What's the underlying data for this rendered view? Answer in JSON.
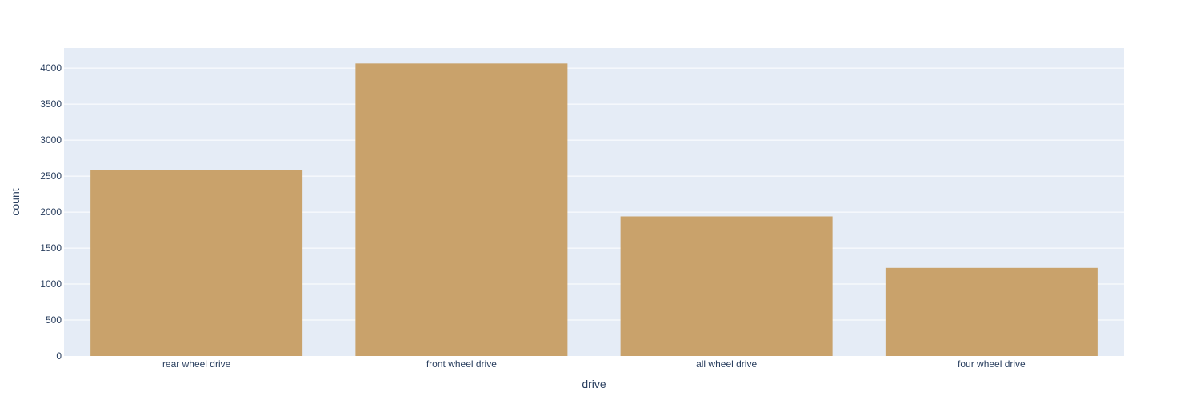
{
  "colors": {
    "plot_background": "#e5ecf6",
    "grid": "#ffffff",
    "bar": "#c9a26b",
    "text": "#2a3f5f"
  },
  "chart_data": {
    "type": "bar",
    "categories": [
      "rear wheel drive",
      "front wheel drive",
      "all wheel drive",
      "four wheel drive"
    ],
    "values": [
      2580,
      4065,
      1940,
      1225
    ],
    "xlabel": "drive",
    "ylabel": "count",
    "ylim": [
      0,
      4280
    ],
    "yticks": [
      0,
      500,
      1000,
      1500,
      2000,
      2500,
      3000,
      3500,
      4000
    ],
    "grid": true,
    "legend": "none"
  }
}
